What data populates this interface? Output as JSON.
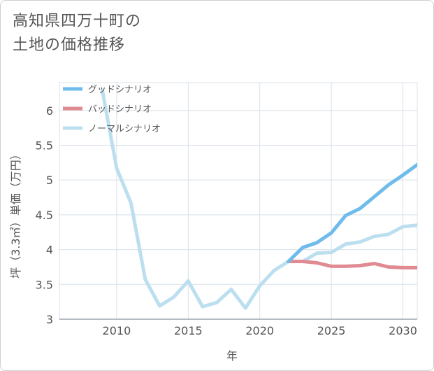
{
  "title_lines": [
    "高知県四万十町の",
    "土地の価格推移"
  ],
  "chart_data": {
    "type": "line",
    "xlabel": "年",
    "ylabel": "坪（3.3㎡）単価（万円）",
    "xlim": [
      2006,
      2031
    ],
    "ylim": [
      3,
      6.4
    ],
    "x_ticks": [
      2010,
      2015,
      2020,
      2025,
      2030
    ],
    "y_ticks": [
      3,
      3.5,
      4,
      4.5,
      5,
      5.5,
      6
    ],
    "y_tick_labels": [
      "3",
      "3.5",
      "4",
      "4.5",
      "5",
      "5.5",
      "6"
    ],
    "grid": true,
    "legend_position": "top-left",
    "series": [
      {
        "name": "グッドシナリオ",
        "color": "#6fbbeb",
        "x": [
          2022,
          2023,
          2024,
          2025,
          2026,
          2027,
          2028,
          2029,
          2030,
          2031
        ],
        "values": [
          3.83,
          4.03,
          4.1,
          4.24,
          4.49,
          4.59,
          4.76,
          4.93,
          5.07,
          5.22
        ]
      },
      {
        "name": "バッドシナリオ",
        "color": "#e08a92",
        "x": [
          2022,
          2023,
          2024,
          2025,
          2026,
          2027,
          2028,
          2029,
          2030,
          2031
        ],
        "values": [
          3.83,
          3.83,
          3.81,
          3.76,
          3.76,
          3.77,
          3.8,
          3.75,
          3.74,
          3.74
        ]
      },
      {
        "name": "ノーマルシナリオ",
        "color": "#bcdff0",
        "x": [
          2009,
          2010,
          2011,
          2012,
          2013,
          2014,
          2015,
          2016,
          2017,
          2018,
          2019,
          2020,
          2021,
          2022,
          2023,
          2024,
          2025,
          2026,
          2027,
          2028,
          2029,
          2030,
          2031
        ],
        "values": [
          6.29,
          5.17,
          4.67,
          3.57,
          3.19,
          3.32,
          3.55,
          3.18,
          3.24,
          3.43,
          3.16,
          3.48,
          3.7,
          3.83,
          3.83,
          3.95,
          3.96,
          4.08,
          4.11,
          4.19,
          4.22,
          4.33,
          4.35
        ]
      }
    ]
  }
}
